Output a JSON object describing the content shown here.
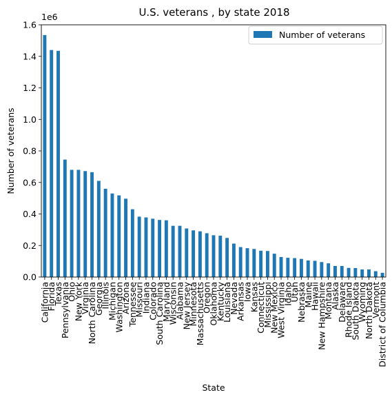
{
  "chart_data": {
    "type": "bar",
    "title": "U.S. veterans , by state 2018",
    "xlabel": "State",
    "ylabel": "Number of veterans",
    "offset_label": "1e6",
    "scale": 1000000,
    "ylim": [
      0,
      1.6
    ],
    "yticks": [
      0.0,
      0.2,
      0.4,
      0.6,
      0.8,
      1.0,
      1.2,
      1.4,
      1.6
    ],
    "grid": false,
    "legend_position": "top-right",
    "bar_color": "#1f77b4",
    "categories": [
      "California",
      "Florida",
      "Texas",
      "Pennsylvania",
      "Ohio",
      "New York",
      "Virginia",
      "North Carolina",
      "Georgia",
      "Illinois",
      "Michigan",
      "Washington",
      "Arizona",
      "Tennessee",
      "Missouri",
      "Indiana",
      "Colorado",
      "South Carolina",
      "Maryland",
      "Wisconsin",
      "Alabama",
      "New Jersey",
      "Minnesota",
      "Massachusetts",
      "Oregon",
      "Oklahoma",
      "Kentucky",
      "Louisiana",
      "Nevada",
      "Arkansas",
      "Iowa",
      "Kansas",
      "Connecticut",
      "Mississippi",
      "New Mexico",
      "West Virginia",
      "Idaho",
      "Utah",
      "Nebraska",
      "Maine",
      "Hawaii",
      "New Hampshire",
      "Montana",
      "Alaska",
      "Delaware",
      "Rhode Island",
      "South Dakota",
      "Wyoming",
      "North Dakota",
      "Vermont",
      "District of Columbia"
    ],
    "series": [
      {
        "name": "Number of veterans",
        "values": [
          1.535,
          1.44,
          1.435,
          0.745,
          0.68,
          0.68,
          0.672,
          0.665,
          0.61,
          0.56,
          0.53,
          0.518,
          0.497,
          0.43,
          0.383,
          0.378,
          0.37,
          0.362,
          0.36,
          0.325,
          0.325,
          0.308,
          0.296,
          0.29,
          0.278,
          0.265,
          0.262,
          0.248,
          0.212,
          0.19,
          0.183,
          0.178,
          0.167,
          0.165,
          0.148,
          0.127,
          0.122,
          0.12,
          0.115,
          0.105,
          0.103,
          0.095,
          0.087,
          0.07,
          0.07,
          0.058,
          0.057,
          0.048,
          0.048,
          0.037,
          0.027
        ]
      }
    ]
  }
}
